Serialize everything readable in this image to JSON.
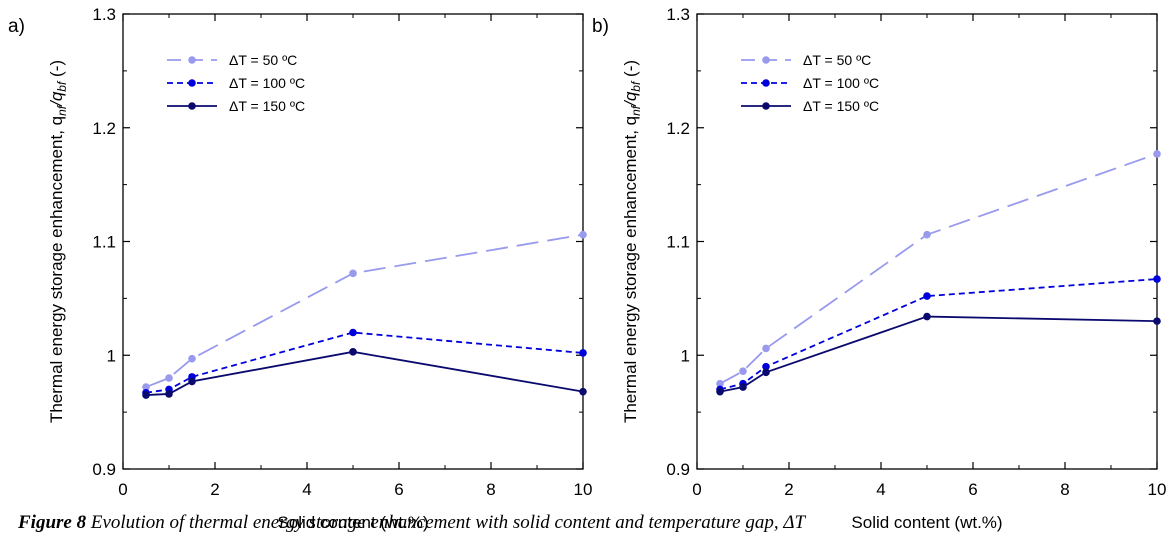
{
  "figure": {
    "caption_prefix": "Figure 8",
    "caption_text": "Evolution of thermal energy storage enhancement with solid content and temperature gap, ΔT"
  },
  "chart_data": [
    {
      "type": "line",
      "panel_label": "a)",
      "xlabel": "Solid content (wt.%)",
      "ylabel": "Thermal energy storage enhancement, q",
      "ylabel_suffix": "(-)",
      "xlim": [
        0,
        10
      ],
      "ylim": [
        0.9,
        1.3
      ],
      "x_ticks": [
        0,
        2,
        4,
        6,
        8,
        10
      ],
      "y_ticks": [
        0.9,
        1,
        1.1,
        1.2,
        1.3
      ],
      "y_tick_labels": [
        "0.9",
        "1",
        "1.1",
        "1.2",
        "1.3"
      ],
      "grid": false,
      "legend_position": "top-left",
      "x": [
        0.5,
        1,
        1.5,
        5,
        10
      ],
      "series": [
        {
          "name": "ΔT = 50 ºC",
          "values": [
            0.972,
            0.98,
            0.997,
            1.072,
            1.106
          ],
          "color": "#9999ee",
          "dash": "long"
        },
        {
          "name": "ΔT = 100  ºC",
          "values": [
            0.967,
            0.97,
            0.981,
            1.02,
            1.002
          ],
          "color": "#0000dd",
          "dash": "short"
        },
        {
          "name": "ΔT = 150  ºC",
          "values": [
            0.965,
            0.966,
            0.977,
            1.003,
            0.968
          ],
          "color": "#0a0a6e",
          "dash": "solid"
        }
      ]
    },
    {
      "type": "line",
      "panel_label": "b)",
      "xlabel": "Solid content (wt.%)",
      "ylabel": "Thermal energy storage enhancement, q",
      "ylabel_suffix": "(-)",
      "xlim": [
        0,
        10
      ],
      "ylim": [
        0.9,
        1.3
      ],
      "x_ticks": [
        0,
        2,
        4,
        6,
        8,
        10
      ],
      "y_ticks": [
        0.9,
        1,
        1.1,
        1.2,
        1.3
      ],
      "y_tick_labels": [
        "0.9",
        "1",
        "1.1",
        "1.2",
        "1.3"
      ],
      "grid": false,
      "legend_position": "top-left",
      "x": [
        0.5,
        1,
        1.5,
        5,
        10
      ],
      "series": [
        {
          "name": "ΔT = 50 ºC",
          "values": [
            0.975,
            0.986,
            1.006,
            1.106,
            1.177
          ],
          "color": "#9999ee",
          "dash": "long"
        },
        {
          "name": "ΔT = 100  ºC",
          "values": [
            0.97,
            0.975,
            0.99,
            1.052,
            1.067
          ],
          "color": "#0000dd",
          "dash": "short"
        },
        {
          "name": "ΔT = 150  ºC",
          "values": [
            0.968,
            0.972,
            0.985,
            1.034,
            1.03
          ],
          "color": "#0a0a6e",
          "dash": "solid"
        }
      ]
    }
  ]
}
